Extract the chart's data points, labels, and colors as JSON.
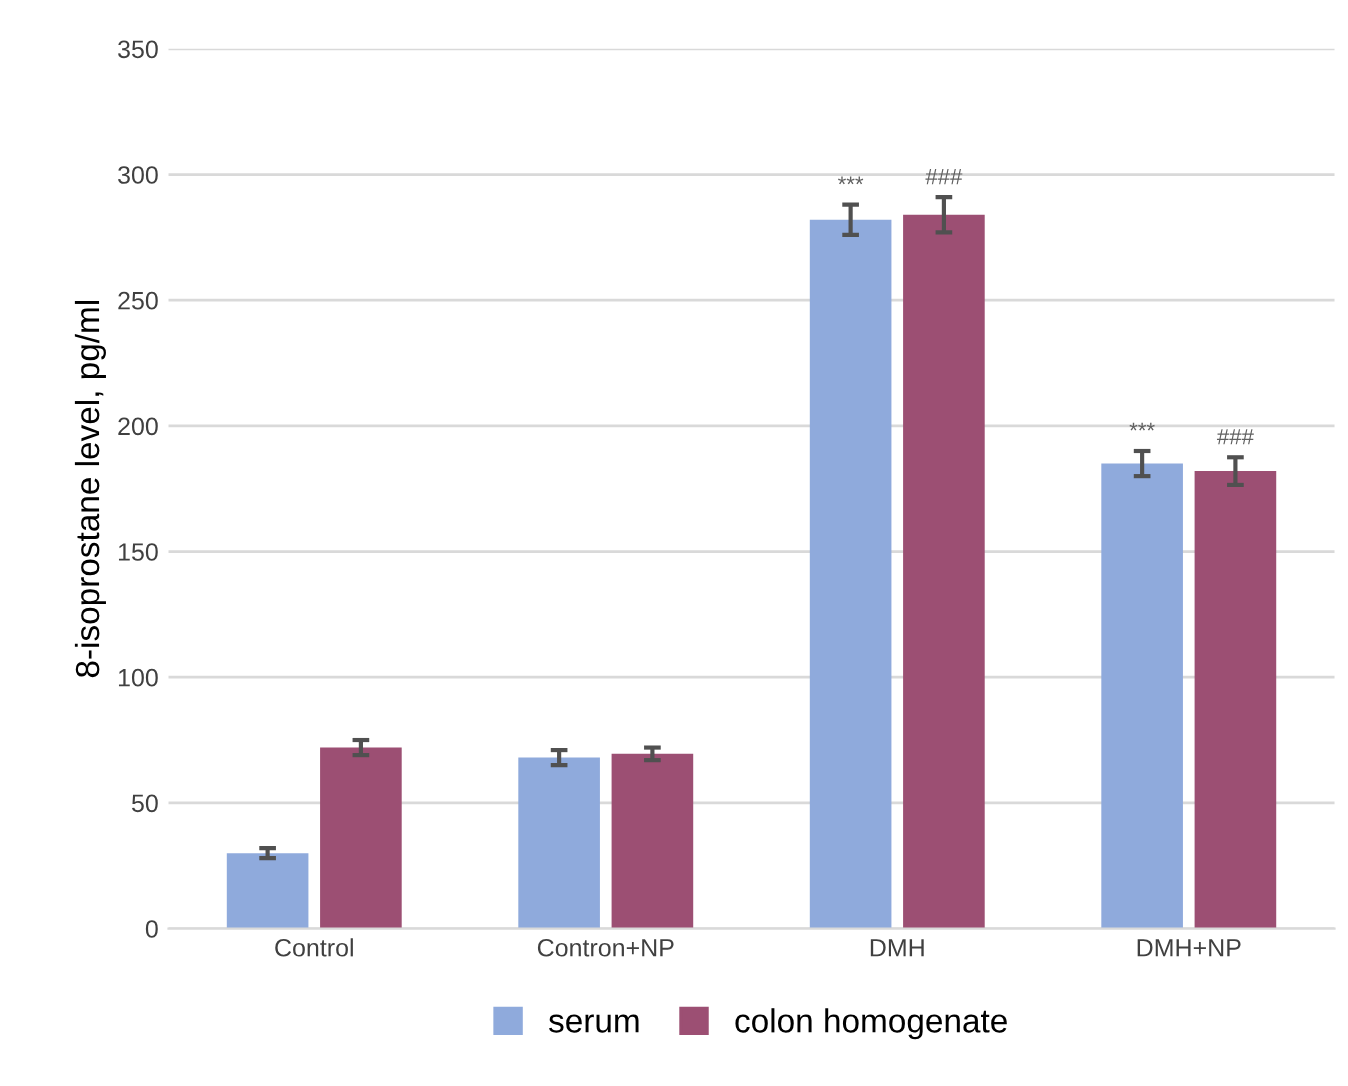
{
  "chart_data": {
    "type": "bar",
    "ylabel": "8-isoprostane level, pg/ml",
    "categories": [
      "Control",
      "Contron+NP",
      "DMH",
      "DMH+NP"
    ],
    "series": [
      {
        "name": "serum",
        "color": "#8faadc",
        "values": [
          30,
          68,
          282,
          185
        ],
        "errors": [
          2,
          3,
          6,
          5
        ]
      },
      {
        "name": "colon homogenate",
        "color": "#9c4f73",
        "values": [
          72,
          69.5,
          284,
          182
        ],
        "errors": [
          3,
          2.5,
          7,
          5.5
        ]
      }
    ],
    "ylim": [
      0,
      350
    ],
    "yticks": [
      0,
      50,
      100,
      150,
      200,
      250,
      300,
      350
    ],
    "grid": "y",
    "legend": "bottom",
    "annotations": [
      "***",
      "###",
      "***",
      "###"
    ]
  }
}
